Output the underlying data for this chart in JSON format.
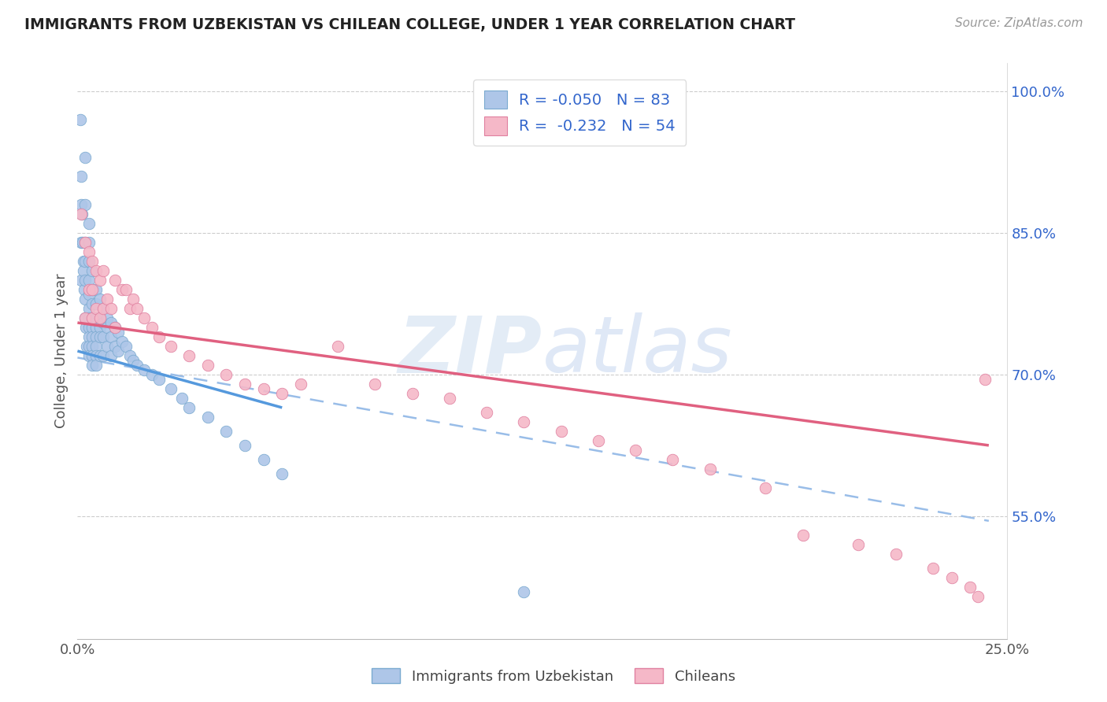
{
  "title": "IMMIGRANTS FROM UZBEKISTAN VS CHILEAN COLLEGE, UNDER 1 YEAR CORRELATION CHART",
  "source": "Source: ZipAtlas.com",
  "ylabel": "College, Under 1 year",
  "xlim": [
    0.0,
    0.25
  ],
  "ylim": [
    0.42,
    1.03
  ],
  "xticks": [
    0.0,
    0.05,
    0.1,
    0.15,
    0.2,
    0.25
  ],
  "xtick_labels": [
    "0.0%",
    "",
    "",
    "",
    "",
    "25.0%"
  ],
  "ytick_vals_right": [
    0.55,
    0.7,
    0.85,
    1.0
  ],
  "ytick_labels_right": [
    "55.0%",
    "70.0%",
    "85.0%",
    "100.0%"
  ],
  "blue_fill": "#aec6e8",
  "blue_edge": "#7aaad0",
  "pink_fill": "#f5b8c8",
  "pink_edge": "#e080a0",
  "blue_line_color": "#5599dd",
  "pink_line_color": "#e06080",
  "dashed_line_color": "#99bde8",
  "legend_text_color": "#3366cc",
  "right_axis_color": "#3366cc",
  "watermark_color": "#ccddf0",
  "R_blue": -0.05,
  "N_blue": 83,
  "R_pink": -0.232,
  "N_pink": 54,
  "blue_line_x0": 0.0,
  "blue_line_y0": 0.725,
  "blue_line_x1": 0.055,
  "blue_line_y1": 0.665,
  "pink_line_x0": 0.0,
  "pink_line_y0": 0.755,
  "pink_line_x1": 0.245,
  "pink_line_y1": 0.625,
  "dash_line_x0": 0.0,
  "dash_line_y0": 0.718,
  "dash_line_x1": 0.245,
  "dash_line_y1": 0.545,
  "blue_x": [
    0.0008,
    0.0009,
    0.001,
    0.001,
    0.001,
    0.0012,
    0.0013,
    0.0015,
    0.0016,
    0.0018,
    0.002,
    0.002,
    0.002,
    0.002,
    0.002,
    0.002,
    0.002,
    0.0022,
    0.0025,
    0.003,
    0.003,
    0.003,
    0.003,
    0.003,
    0.003,
    0.003,
    0.003,
    0.003,
    0.003,
    0.003,
    0.004,
    0.004,
    0.004,
    0.004,
    0.004,
    0.004,
    0.004,
    0.004,
    0.004,
    0.005,
    0.005,
    0.005,
    0.005,
    0.005,
    0.005,
    0.005,
    0.005,
    0.006,
    0.006,
    0.006,
    0.006,
    0.006,
    0.007,
    0.007,
    0.007,
    0.007,
    0.008,
    0.008,
    0.008,
    0.009,
    0.009,
    0.009,
    0.01,
    0.01,
    0.011,
    0.011,
    0.012,
    0.013,
    0.014,
    0.015,
    0.016,
    0.018,
    0.02,
    0.022,
    0.025,
    0.028,
    0.03,
    0.035,
    0.04,
    0.045,
    0.05,
    0.055,
    0.12
  ],
  "blue_y": [
    0.97,
    0.91,
    0.88,
    0.84,
    0.8,
    0.87,
    0.84,
    0.82,
    0.81,
    0.79,
    0.93,
    0.88,
    0.84,
    0.82,
    0.8,
    0.78,
    0.76,
    0.75,
    0.73,
    0.86,
    0.84,
    0.82,
    0.8,
    0.785,
    0.77,
    0.76,
    0.75,
    0.74,
    0.73,
    0.72,
    0.81,
    0.79,
    0.775,
    0.76,
    0.75,
    0.74,
    0.73,
    0.72,
    0.71,
    0.79,
    0.775,
    0.76,
    0.75,
    0.74,
    0.73,
    0.72,
    0.71,
    0.78,
    0.76,
    0.75,
    0.74,
    0.72,
    0.77,
    0.755,
    0.74,
    0.72,
    0.76,
    0.75,
    0.73,
    0.755,
    0.74,
    0.72,
    0.75,
    0.73,
    0.745,
    0.725,
    0.735,
    0.73,
    0.72,
    0.715,
    0.71,
    0.705,
    0.7,
    0.695,
    0.685,
    0.675,
    0.665,
    0.655,
    0.64,
    0.625,
    0.61,
    0.595,
    0.47
  ],
  "pink_x": [
    0.001,
    0.002,
    0.002,
    0.003,
    0.003,
    0.004,
    0.004,
    0.004,
    0.005,
    0.005,
    0.006,
    0.006,
    0.007,
    0.007,
    0.008,
    0.009,
    0.01,
    0.01,
    0.012,
    0.013,
    0.014,
    0.015,
    0.016,
    0.018,
    0.02,
    0.022,
    0.025,
    0.03,
    0.035,
    0.04,
    0.045,
    0.05,
    0.055,
    0.06,
    0.07,
    0.08,
    0.09,
    0.1,
    0.11,
    0.12,
    0.13,
    0.14,
    0.15,
    0.16,
    0.17,
    0.185,
    0.195,
    0.21,
    0.22,
    0.23,
    0.235,
    0.24,
    0.242,
    0.244
  ],
  "pink_y": [
    0.87,
    0.84,
    0.76,
    0.83,
    0.79,
    0.82,
    0.79,
    0.76,
    0.81,
    0.77,
    0.8,
    0.76,
    0.81,
    0.77,
    0.78,
    0.77,
    0.8,
    0.75,
    0.79,
    0.79,
    0.77,
    0.78,
    0.77,
    0.76,
    0.75,
    0.74,
    0.73,
    0.72,
    0.71,
    0.7,
    0.69,
    0.685,
    0.68,
    0.69,
    0.73,
    0.69,
    0.68,
    0.675,
    0.66,
    0.65,
    0.64,
    0.63,
    0.62,
    0.61,
    0.6,
    0.58,
    0.53,
    0.52,
    0.51,
    0.495,
    0.485,
    0.475,
    0.465,
    0.695
  ]
}
